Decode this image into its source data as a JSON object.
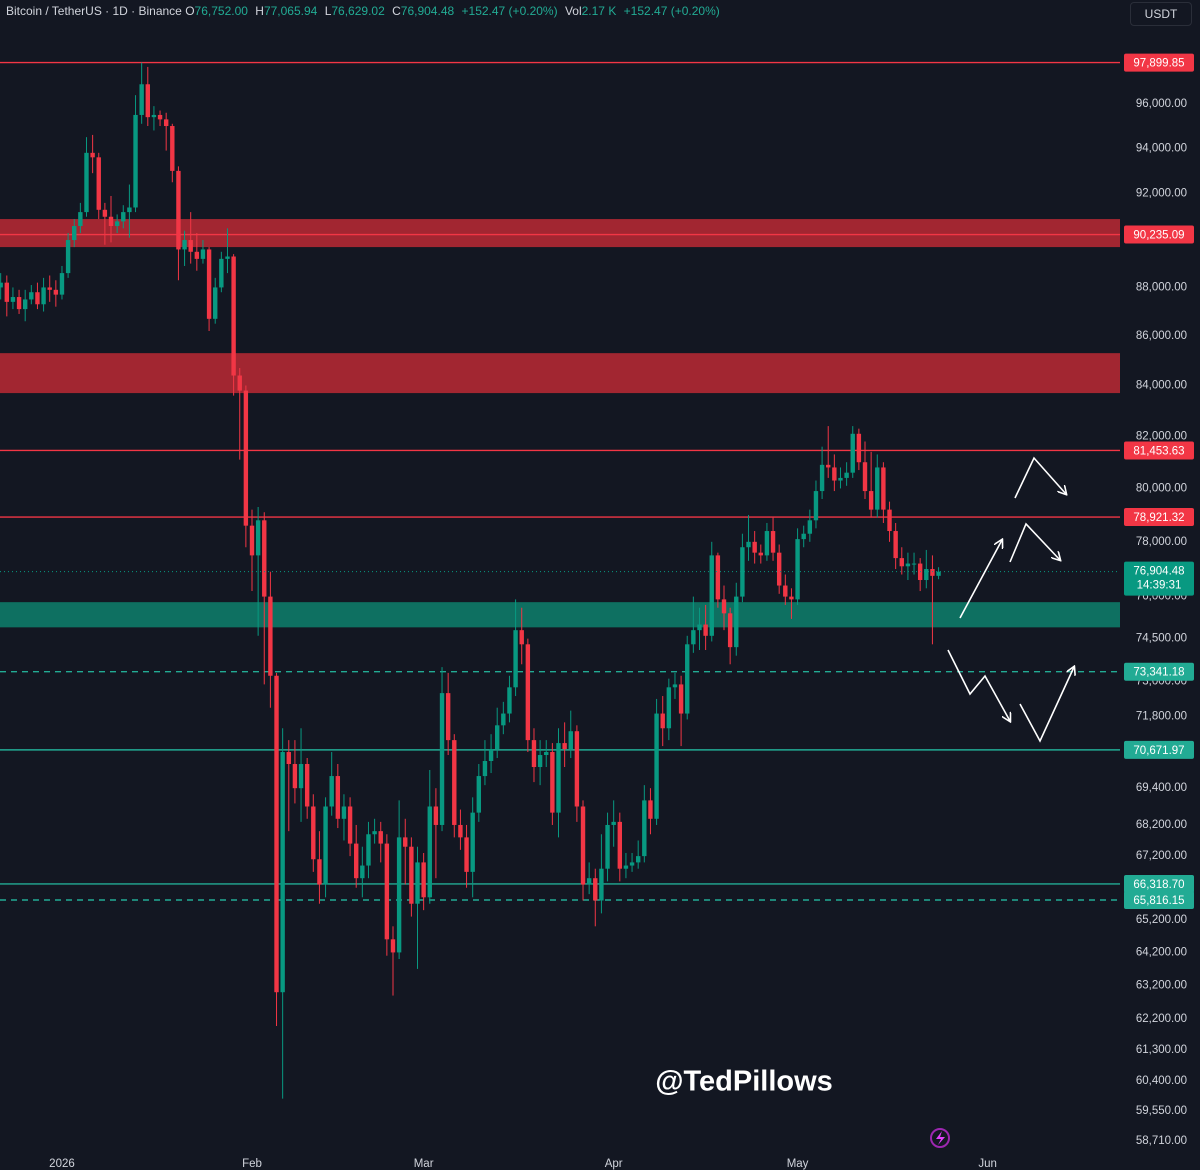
{
  "header": {
    "symbol": "Bitcoin / TetherUS · 1D · Binance",
    "ohlc": [
      {
        "key": "O",
        "value": "76,752.00"
      },
      {
        "key": "H",
        "value": "77,065.94"
      },
      {
        "key": "L",
        "value": "76,629.02"
      },
      {
        "key": "C",
        "value": "76,904.48"
      }
    ],
    "change": "+152.47 (+0.20%)",
    "volume_label": "Vol",
    "volume": "2.17 K",
    "volume_change": "+152.47 (+0.20%)",
    "currency": "USDT"
  },
  "watermark": "@TedPillows",
  "chart_data": {
    "type": "candlestick",
    "log_scale": true,
    "ylim": [
      58320,
      100850
    ],
    "yticks": [
      {
        "value": 96000,
        "label": "96,000.00"
      },
      {
        "value": 94000,
        "label": "94,000.00"
      },
      {
        "value": 92000,
        "label": "92,000.00"
      },
      {
        "value": 88000,
        "label": "88,000.00"
      },
      {
        "value": 86000,
        "label": "86,000.00"
      },
      {
        "value": 84000,
        "label": "84,000.00"
      },
      {
        "value": 82000,
        "label": "82,000.00"
      },
      {
        "value": 80000,
        "label": "80,000.00"
      },
      {
        "value": 78000,
        "label": "78,000.00"
      },
      {
        "value": 76000,
        "label": "76,000.00"
      },
      {
        "value": 74500,
        "label": "74,500.00"
      },
      {
        "value": 73000,
        "label": "73,000.00"
      },
      {
        "value": 71800,
        "label": "71,800.00"
      },
      {
        "value": 69400,
        "label": "69,400.00"
      },
      {
        "value": 68200,
        "label": "68,200.00"
      },
      {
        "value": 67200,
        "label": "67,200.00"
      },
      {
        "value": 65200,
        "label": "65,200.00"
      },
      {
        "value": 64200,
        "label": "64,200.00"
      },
      {
        "value": 63200,
        "label": "63,200.00"
      },
      {
        "value": 62200,
        "label": "62,200.00"
      },
      {
        "value": 61300,
        "label": "61,300.00"
      },
      {
        "value": 60400,
        "label": "60,400.00"
      },
      {
        "value": 59550,
        "label": "59,550.00"
      },
      {
        "value": 58710,
        "label": "58,710.00"
      }
    ],
    "colors": {
      "up": "#089981",
      "down": "#f23645"
    },
    "categories": [
      null,
      null,
      null,
      null,
      null,
      null,
      null,
      null,
      null,
      null,
      "2026",
      null,
      null,
      null,
      null,
      null,
      null,
      null,
      null,
      null,
      null,
      null,
      null,
      null,
      null,
      null,
      null,
      null,
      null,
      null,
      null,
      null,
      null,
      null,
      null,
      null,
      null,
      null,
      null,
      null,
      null,
      "Feb",
      null,
      null,
      null,
      null,
      null,
      null,
      null,
      null,
      null,
      null,
      null,
      null,
      null,
      null,
      null,
      null,
      null,
      null,
      null,
      null,
      null,
      null,
      null,
      null,
      null,
      null,
      null,
      "Mar",
      null,
      null,
      null,
      null,
      null,
      null,
      null,
      null,
      null,
      null,
      null,
      null,
      null,
      null,
      null,
      null,
      null,
      null,
      null,
      null,
      null,
      null,
      null,
      null,
      null,
      null,
      null,
      null,
      null,
      null,
      "Apr",
      null,
      null,
      null,
      null,
      null,
      null,
      null,
      null,
      null,
      null,
      null,
      null,
      null,
      null,
      null,
      null,
      null,
      null,
      null,
      null,
      null,
      null,
      null,
      null,
      null,
      null,
      null,
      null,
      null,
      "May",
      null,
      null,
      null,
      null,
      null,
      null,
      null,
      null,
      null,
      null,
      null,
      null,
      null,
      null,
      null,
      null,
      null,
      null,
      null,
      null,
      null,
      null,
      null,
      null,
      null,
      null,
      null,
      null,
      null,
      null,
      "Jun"
    ],
    "open": [
      88000,
      88200,
      87400,
      87600,
      87100,
      87500,
      87800,
      87300,
      88000,
      87900,
      87700,
      88600,
      90000,
      90600,
      91200,
      93800,
      93600,
      91300,
      91000,
      90600,
      90800,
      91200,
      91400,
      95500,
      96900,
      95400,
      95500,
      95300,
      95000,
      93000,
      89600,
      90000,
      89500,
      89200,
      89600,
      86700,
      88000,
      89200,
      89300,
      84400,
      83800,
      78600,
      77500,
      78800,
      76000,
      73200,
      63000,
      70600,
      70200,
      69400,
      70200,
      68800,
      67100,
      66300,
      68800,
      69800,
      68400,
      68800,
      67600,
      66500,
      66900,
      67900,
      68000,
      67600,
      64600,
      64200,
      67800,
      67500,
      65700,
      67000,
      65900,
      68800,
      68200,
      72600,
      71000,
      68200,
      67800,
      66700,
      68600,
      69800,
      70300,
      70700,
      71500,
      71900,
      72800,
      74800,
      74300,
      71000,
      70100,
      70500,
      70600,
      68600,
      70900,
      70700,
      71300,
      68800,
      66300,
      66500,
      65800,
      66800,
      68200,
      68300,
      66800,
      66900,
      67000,
      67200,
      69000,
      68400,
      71900,
      71400,
      72800,
      72900,
      71900,
      74300,
      74800,
      75000,
      74600,
      77500,
      75900,
      75400,
      74200,
      76000,
      77800,
      78000,
      77600,
      77500,
      78400,
      77600,
      76400,
      76000,
      75900,
      78100,
      78300,
      78800,
      79900,
      80900,
      80800,
      80300,
      80400,
      80600,
      82100,
      81000,
      79900,
      79200,
      80800,
      79200,
      78400,
      77400,
      77100,
      77200,
      77200,
      76600,
      77000,
      76752,
      null,
      null,
      null,
      null,
      null,
      null,
      null,
      null
    ],
    "high": [
      88600,
      88500,
      88000,
      87900,
      87900,
      88100,
      88200,
      88400,
      88500,
      88300,
      88900,
      90300,
      90900,
      91600,
      94500,
      94600,
      93800,
      91600,
      91900,
      91100,
      91500,
      92400,
      96400,
      97900,
      97700,
      95900,
      95700,
      95600,
      95100,
      93200,
      90400,
      91200,
      90300,
      90000,
      89700,
      88400,
      89500,
      90500,
      89400,
      84700,
      84000,
      79200,
      79300,
      79100,
      76900,
      73300,
      71400,
      71000,
      71000,
      71400,
      70400,
      69200,
      68000,
      69100,
      70600,
      70200,
      69200,
      69100,
      68200,
      67500,
      68300,
      68400,
      68300,
      67900,
      65000,
      69000,
      68400,
      67800,
      67500,
      67300,
      70000,
      69400,
      73500,
      73300,
      71200,
      68700,
      68200,
      69100,
      70200,
      71000,
      71200,
      72100,
      72300,
      73200,
      75900,
      75600,
      74500,
      71400,
      71000,
      71000,
      70900,
      71400,
      71600,
      72000,
      71500,
      69000,
      67000,
      66800,
      67900,
      68600,
      69000,
      68600,
      67300,
      67300,
      67700,
      69500,
      69400,
      72400,
      72500,
      73100,
      73300,
      73200,
      74600,
      76000,
      75600,
      75700,
      78000,
      77600,
      76400,
      75600,
      76500,
      78300,
      79000,
      78400,
      77900,
      78700,
      78900,
      77900,
      76800,
      76300,
      78500,
      78600,
      79200,
      80300,
      81600,
      82400,
      81300,
      80800,
      81000,
      82400,
      82300,
      81800,
      81400,
      81300,
      81000,
      79500,
      78700,
      77800,
      77600,
      77600,
      77400,
      77700,
      77500,
      77065.94,
      null,
      null,
      null,
      null,
      null,
      null,
      null,
      null
    ],
    "low": [
      87500,
      86800,
      87100,
      86900,
      86600,
      87300,
      87100,
      87000,
      87400,
      87200,
      87500,
      88400,
      89700,
      90300,
      91000,
      92900,
      90900,
      89800,
      89900,
      90300,
      90500,
      90100,
      91200,
      95100,
      95000,
      94800,
      95000,
      93900,
      92500,
      88300,
      88900,
      89000,
      88700,
      89000,
      86200,
      86500,
      87800,
      88600,
      83600,
      81100,
      77800,
      76200,
      74600,
      72900,
      72100,
      62000,
      59900,
      68000,
      68900,
      68300,
      68400,
      66700,
      65700,
      65900,
      68500,
      68100,
      67700,
      67200,
      66200,
      65900,
      66500,
      67600,
      67000,
      64100,
      62900,
      64000,
      66300,
      65300,
      63700,
      65500,
      65700,
      66500,
      68000,
      70500,
      67800,
      67400,
      66200,
      65900,
      68300,
      69500,
      69900,
      70400,
      71200,
      71600,
      72500,
      73600,
      70600,
      69600,
      69500,
      70100,
      68200,
      67800,
      70100,
      70400,
      68300,
      65800,
      66000,
      65000,
      65400,
      66400,
      67500,
      66400,
      66500,
      66700,
      66800,
      67000,
      67900,
      68200,
      70800,
      71000,
      72400,
      70800,
      71700,
      74000,
      74100,
      74100,
      74400,
      75600,
      74800,
      73600,
      73900,
      75800,
      77300,
      77200,
      77200,
      77300,
      77300,
      76100,
      75700,
      75200,
      75700,
      77800,
      78000,
      78500,
      79600,
      80400,
      79900,
      80000,
      80100,
      80400,
      80700,
      79600,
      78900,
      78900,
      78700,
      78000,
      77000,
      76800,
      76600,
      76800,
      76200,
      76300,
      74300,
      76629.02,
      null,
      null,
      null,
      null,
      null,
      null,
      null,
      null
    ],
    "close": [
      88200,
      87400,
      87600,
      87100,
      87500,
      87800,
      87300,
      88000,
      87900,
      87700,
      88600,
      90000,
      90600,
      91200,
      93800,
      93600,
      91300,
      91000,
      90600,
      90800,
      91200,
      91400,
      95500,
      96900,
      95400,
      95500,
      95300,
      95000,
      93000,
      89600,
      90000,
      89500,
      89200,
      89600,
      86700,
      88000,
      89200,
      89300,
      84400,
      83800,
      78600,
      77500,
      78800,
      76000,
      73200,
      63000,
      70600,
      70200,
      69400,
      70200,
      68800,
      67100,
      66300,
      68800,
      69800,
      68400,
      68800,
      67600,
      66500,
      66900,
      67900,
      68000,
      67600,
      64600,
      64200,
      67800,
      67500,
      65700,
      67000,
      65900,
      68800,
      68200,
      72600,
      71000,
      68200,
      67800,
      66700,
      68600,
      69800,
      70300,
      70700,
      71500,
      71900,
      72800,
      74800,
      74300,
      71000,
      70100,
      70500,
      70600,
      68600,
      70900,
      70700,
      71300,
      68800,
      66300,
      66500,
      65800,
      66800,
      68200,
      68300,
      66800,
      66900,
      67000,
      67200,
      69000,
      68400,
      71900,
      71400,
      72800,
      72900,
      71900,
      74300,
      74800,
      75000,
      74600,
      77500,
      75900,
      75400,
      74200,
      76000,
      77800,
      78000,
      77600,
      77500,
      78400,
      77600,
      76400,
      76000,
      75900,
      78100,
      78300,
      78800,
      79900,
      80900,
      80800,
      80300,
      80400,
      80600,
      82100,
      81000,
      79900,
      79200,
      80800,
      79200,
      78400,
      77400,
      77100,
      77200,
      77200,
      76600,
      77000,
      76752,
      76904.48,
      null,
      null,
      null,
      null,
      null,
      null,
      null,
      null
    ],
    "zones": [
      {
        "range": [
          89700,
          90900
        ],
        "color": "#b22833"
      },
      {
        "range": [
          83700,
          85300
        ],
        "color": "#b22833"
      },
      {
        "range": [
          74900,
          75800
        ],
        "color": "#0e7a68"
      }
    ],
    "levels": [
      {
        "value": 97899.85,
        "label": "97,899.85",
        "color": "#f23645",
        "dashed": false
      },
      {
        "value": 90235.09,
        "label": "90,235.09",
        "color": "#f23645",
        "dashed": false
      },
      {
        "value": 81453.63,
        "label": "81,453.63",
        "color": "#f23645",
        "dashed": false
      },
      {
        "value": 78921.32,
        "label": "78,921.32",
        "color": "#f23645",
        "dashed": false
      },
      {
        "value": 73341.18,
        "label": "73,341.18",
        "color": "#22ab94",
        "dashed": true
      },
      {
        "value": 70671.97,
        "label": "70,671.97",
        "color": "#22ab94",
        "dashed": false
      },
      {
        "value": 66318.7,
        "label": "66,318.70",
        "color": "#22ab94",
        "dashed": false
      },
      {
        "value": 65816.15,
        "label": "65,816.15",
        "color": "#22ab94",
        "dashed": true
      }
    ],
    "last_price": {
      "value": 76904.48,
      "label": "76,904.48",
      "countdown": "14:39:31",
      "color": "#089981"
    }
  }
}
